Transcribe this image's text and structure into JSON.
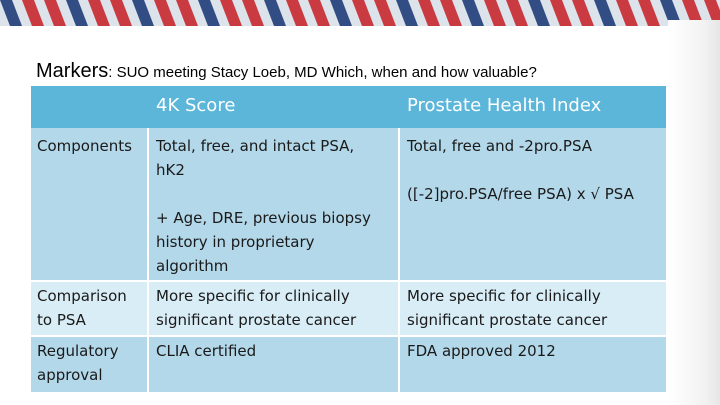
{
  "slide": {
    "title_main": "Markers",
    "title_rest": ": SUO meeting Stacy Loeb, MD Which, when and how valuable?"
  },
  "table": {
    "headers": [
      "",
      "4K Score",
      "Prostate Health Index"
    ],
    "rows": [
      {
        "label": "Components",
        "col1_lines": [
          "Total, free, and intact PSA,",
          "hK2",
          "",
          "+ Age, DRE, previous biopsy",
          "history in proprietary",
          "algorithm"
        ],
        "col2_lines": [
          "Total, free and -2pro.PSA",
          "",
          "([-2]pro.PSA/free PSA) x √ PSA"
        ]
      },
      {
        "label_lines": [
          "Comparison",
          "to PSA"
        ],
        "col1_lines": [
          "More specific for clinically",
          "significant prostate cancer"
        ],
        "col2_lines": [
          "More specific for clinically",
          "significant prostate cancer"
        ]
      },
      {
        "label_lines": [
          "Regulatory",
          "approval"
        ],
        "col1_lines": [
          "CLIA certified"
        ],
        "col2_lines": [
          "FDA approved 2012"
        ]
      }
    ]
  },
  "colors": {
    "header_bg": "#5bb6d9",
    "body_bg": "#b3d8ea",
    "alt_row_bg": "#d9edf6",
    "banner_red": "#c8282f",
    "banner_blue": "#1f3c78"
  }
}
